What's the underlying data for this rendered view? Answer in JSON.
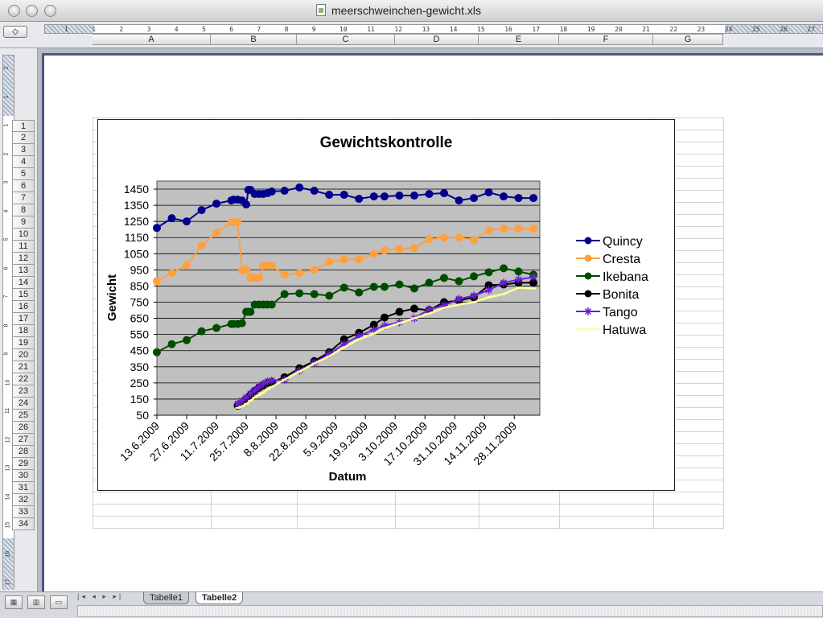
{
  "window": {
    "title": "meerschweinchen-gewicht.xls"
  },
  "ruler": {
    "marks": [
      "1",
      "1",
      "2",
      "3",
      "4",
      "5",
      "6",
      "7",
      "8",
      "9",
      "10",
      "11",
      "12",
      "13",
      "14",
      "15",
      "16",
      "17",
      "18",
      "19",
      "20",
      "21",
      "22",
      "23",
      "24",
      "25",
      "26",
      "27"
    ]
  },
  "vertical_ruler": {
    "marks": [
      "2",
      "1",
      "1",
      "2",
      "3",
      "4",
      "5",
      "6",
      "7",
      "8",
      "9",
      "10",
      "11",
      "12",
      "13",
      "14",
      "15",
      "16",
      "17"
    ]
  },
  "columns": [
    "A",
    "B",
    "C",
    "D",
    "E",
    "F",
    "G"
  ],
  "rows": [
    "1",
    "2",
    "3",
    "4",
    "5",
    "6",
    "7",
    "8",
    "9",
    "10",
    "11",
    "12",
    "13",
    "14",
    "15",
    "16",
    "17",
    "18",
    "19",
    "20",
    "21",
    "22",
    "23",
    "24",
    "25",
    "26",
    "27",
    "28",
    "29",
    "30",
    "31",
    "32",
    "33",
    "34"
  ],
  "sheets": [
    {
      "label": "Tabelle1",
      "active": false
    },
    {
      "label": "Tabelle2",
      "active": true
    }
  ],
  "sheet_nav": "|◂ ◂ ▸ ▸|",
  "view_buttons": [
    "normal-view-icon",
    "page-layout-icon",
    "page-break-icon"
  ],
  "chart_data": {
    "type": "line",
    "title": "Gewichtskontrolle",
    "xlabel": "Datum",
    "ylabel": "Gewicht",
    "ylim": [
      50,
      1500
    ],
    "yticks": [
      50,
      150,
      250,
      350,
      450,
      550,
      650,
      750,
      850,
      950,
      1050,
      1150,
      1250,
      1350,
      1450
    ],
    "x_tick_labels": [
      "13.6.2009",
      "27.6.2009",
      "11.7.2009",
      "25.7.2009",
      "8.8.2009",
      "22.8.2009",
      "5.9.2009",
      "19.9.2009",
      "3.10.2009",
      "17.10.2009",
      "31.10.2009",
      "14.11.2009",
      "28.11.2009"
    ],
    "x_range_days": [
      0,
      180
    ],
    "grid": true,
    "legend_position": "right",
    "plot_background": "#c0c0c0",
    "series": [
      {
        "name": "Quincy",
        "color": "#00008b",
        "marker": "circle",
        "x": [
          0,
          7,
          14,
          21,
          28,
          35,
          36,
          38,
          40,
          42,
          43,
          44,
          46,
          48,
          50,
          52,
          54,
          60,
          67,
          74,
          81,
          88,
          95,
          102,
          107,
          114,
          121,
          128,
          135,
          142,
          149,
          156,
          163,
          170,
          177
        ],
        "y": [
          1210,
          1270,
          1250,
          1320,
          1360,
          1380,
          1385,
          1385,
          1380,
          1355,
          1445,
          1445,
          1420,
          1420,
          1420,
          1425,
          1435,
          1440,
          1460,
          1440,
          1415,
          1415,
          1390,
          1405,
          1405,
          1410,
          1410,
          1420,
          1425,
          1380,
          1395,
          1430,
          1405,
          1395,
          1395
        ]
      },
      {
        "name": "Cresta",
        "color": "#ffa040",
        "marker": "circle",
        "x": [
          0,
          7,
          14,
          21,
          28,
          35,
          36,
          38,
          40,
          42,
          44,
          46,
          48,
          50,
          52,
          54,
          60,
          67,
          74,
          81,
          88,
          95,
          102,
          107,
          114,
          121,
          128,
          135,
          142,
          149,
          156,
          163,
          170,
          177
        ],
        "y": [
          880,
          930,
          980,
          1100,
          1180,
          1245,
          1245,
          1245,
          945,
          950,
          900,
          900,
          900,
          975,
          975,
          975,
          920,
          930,
          950,
          1000,
          1015,
          1015,
          1050,
          1070,
          1080,
          1085,
          1140,
          1150,
          1150,
          1135,
          1195,
          1205,
          1205,
          1205
        ]
      },
      {
        "name": "Ikebana",
        "color": "#004d00",
        "marker": "circle",
        "x": [
          0,
          7,
          14,
          21,
          28,
          35,
          36,
          38,
          40,
          42,
          43,
          44,
          46,
          48,
          50,
          52,
          54,
          60,
          67,
          74,
          81,
          88,
          95,
          102,
          107,
          114,
          121,
          128,
          135,
          142,
          149,
          156,
          163,
          170,
          177
        ],
        "y": [
          440,
          490,
          515,
          570,
          590,
          615,
          615,
          615,
          620,
          690,
          690,
          690,
          735,
          735,
          735,
          735,
          735,
          800,
          805,
          800,
          790,
          840,
          810,
          845,
          845,
          860,
          835,
          870,
          900,
          880,
          910,
          935,
          960,
          940,
          920
        ]
      },
      {
        "name": "Bonita",
        "color": "#000000",
        "marker": "circle",
        "x": [
          38,
          40,
          42,
          44,
          46,
          48,
          50,
          52,
          54,
          60,
          67,
          74,
          81,
          88,
          95,
          102,
          107,
          114,
          121,
          128,
          135,
          142,
          149,
          156,
          163,
          170,
          177
        ],
        "y": [
          110,
          125,
          150,
          175,
          200,
          220,
          235,
          250,
          255,
          285,
          340,
          385,
          440,
          520,
          560,
          610,
          655,
          690,
          710,
          700,
          750,
          760,
          780,
          855,
          860,
          870,
          870
        ]
      },
      {
        "name": "Tango",
        "color": "#6a1fd6",
        "marker": "star",
        "x": [
          38,
          40,
          42,
          44,
          46,
          48,
          50,
          52,
          54,
          60,
          67,
          74,
          81,
          88,
          95,
          102,
          107,
          114,
          121,
          128,
          135,
          142,
          149,
          156,
          163,
          170,
          177
        ],
        "y": [
          120,
          140,
          160,
          185,
          205,
          225,
          245,
          260,
          265,
          270,
          325,
          375,
          430,
          490,
          540,
          580,
          605,
          625,
          650,
          705,
          730,
          770,
          790,
          825,
          870,
          890,
          905
        ]
      },
      {
        "name": "Hatuwa",
        "color": "#ffff99",
        "marker": "line",
        "x": [
          38,
          40,
          42,
          44,
          46,
          48,
          50,
          52,
          54,
          60,
          67,
          74,
          81,
          88,
          95,
          102,
          107,
          114,
          121,
          128,
          135,
          142,
          149,
          156,
          163,
          170,
          177
        ],
        "y": [
          95,
          105,
          120,
          140,
          160,
          175,
          190,
          210,
          225,
          270,
          320,
          370,
          415,
          470,
          520,
          555,
          590,
          620,
          650,
          680,
          715,
          735,
          750,
          780,
          800,
          840,
          835
        ]
      }
    ]
  }
}
